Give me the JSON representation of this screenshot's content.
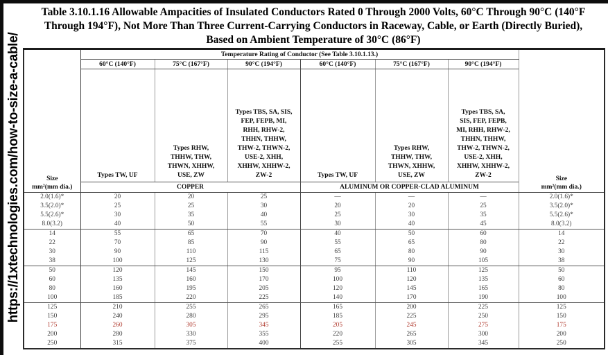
{
  "page": {
    "sidebar_url": "https://1xtechnologies.com/how-to-size-a-cable/",
    "title": "Table 3.10.1.16 Allowable Ampacities of Insulated Conductors Rated 0 Through 2000 Volts, 60°C Through 90°C (140°F Through 194°F), Not More Than Three Current-Carrying Conductors in Raceway, Cable, or Earth (Directly Buried), Based on Ambient Temperature of 30°C (86°F)"
  },
  "table": {
    "span_header": "Temperature Rating of Conductor (See Table 3.10.1.13.)",
    "size_header": {
      "line1": "Size",
      "line2": "mm²(mm dia.)"
    },
    "temp_headers": [
      "60°C (140°F)",
      "75°C (167°F)",
      "90°C (194°F)"
    ],
    "type_headers": {
      "col60": "Types TW, UF",
      "col75": "Types RHW, THHW, THW, THWN, XHHW, USE, ZW",
      "col90": "Types TBS, SA, SIS, FEP, FEPB, MI, RHH, RHW-2, THHN, THHW, THW-2, THWN-2, USE-2, XHH, XHHW, XHHW-2, ZW-2"
    },
    "material_headers": {
      "copper": "COPPER",
      "aluminum": "ALUMINUM OR COPPER-CLAD ALUMINUM"
    },
    "rows": [
      {
        "size": "2.0(1.6)*",
        "cu": [
          "20",
          "20",
          "25"
        ],
        "al": [
          "—",
          "—",
          "—"
        ],
        "red": false,
        "group_end": false
      },
      {
        "size": "3.5(2.0)*",
        "cu": [
          "25",
          "25",
          "30"
        ],
        "al": [
          "20",
          "20",
          "25"
        ],
        "red": false,
        "group_end": false
      },
      {
        "size": "5.5(2.6)*",
        "cu": [
          "30",
          "35",
          "40"
        ],
        "al": [
          "25",
          "30",
          "35"
        ],
        "red": false,
        "group_end": false
      },
      {
        "size": "8.0(3.2)",
        "cu": [
          "40",
          "50",
          "55"
        ],
        "al": [
          "30",
          "40",
          "45"
        ],
        "red": false,
        "group_end": true
      },
      {
        "size": "14",
        "cu": [
          "55",
          "65",
          "70"
        ],
        "al": [
          "40",
          "50",
          "60"
        ],
        "red": false,
        "group_end": false
      },
      {
        "size": "22",
        "cu": [
          "70",
          "85",
          "90"
        ],
        "al": [
          "55",
          "65",
          "80"
        ],
        "red": false,
        "group_end": false
      },
      {
        "size": "30",
        "cu": [
          "90",
          "110",
          "115"
        ],
        "al": [
          "65",
          "80",
          "90"
        ],
        "red": false,
        "group_end": false
      },
      {
        "size": "38",
        "cu": [
          "100",
          "125",
          "130"
        ],
        "al": [
          "75",
          "90",
          "105"
        ],
        "red": false,
        "group_end": true
      },
      {
        "size": "50",
        "cu": [
          "120",
          "145",
          "150"
        ],
        "al": [
          "95",
          "110",
          "125"
        ],
        "red": false,
        "group_end": false
      },
      {
        "size": "60",
        "cu": [
          "135",
          "160",
          "170"
        ],
        "al": [
          "100",
          "120",
          "135"
        ],
        "red": false,
        "group_end": false
      },
      {
        "size": "80",
        "cu": [
          "160",
          "195",
          "205"
        ],
        "al": [
          "120",
          "145",
          "165"
        ],
        "red": false,
        "group_end": false
      },
      {
        "size": "100",
        "cu": [
          "185",
          "220",
          "225"
        ],
        "al": [
          "140",
          "170",
          "190"
        ],
        "red": false,
        "group_end": true
      },
      {
        "size": "125",
        "cu": [
          "210",
          "255",
          "265"
        ],
        "al": [
          "165",
          "200",
          "225"
        ],
        "red": false,
        "group_end": false
      },
      {
        "size": "150",
        "cu": [
          "240",
          "280",
          "295"
        ],
        "al": [
          "185",
          "225",
          "250"
        ],
        "red": false,
        "group_end": false
      },
      {
        "size": "175",
        "cu": [
          "260",
          "305",
          "345"
        ],
        "al": [
          "205",
          "245",
          "275"
        ],
        "red": true,
        "group_end": false
      },
      {
        "size": "200",
        "cu": [
          "280",
          "330",
          "355"
        ],
        "al": [
          "220",
          "265",
          "300"
        ],
        "red": false,
        "group_end": false
      },
      {
        "size": "250",
        "cu": [
          "315",
          "375",
          "400"
        ],
        "al": [
          "255",
          "305",
          "345"
        ],
        "red": false,
        "group_end": true
      }
    ]
  },
  "colors": {
    "highlight_red": "#b03a2e",
    "frame_black": "#0d0d0d"
  }
}
